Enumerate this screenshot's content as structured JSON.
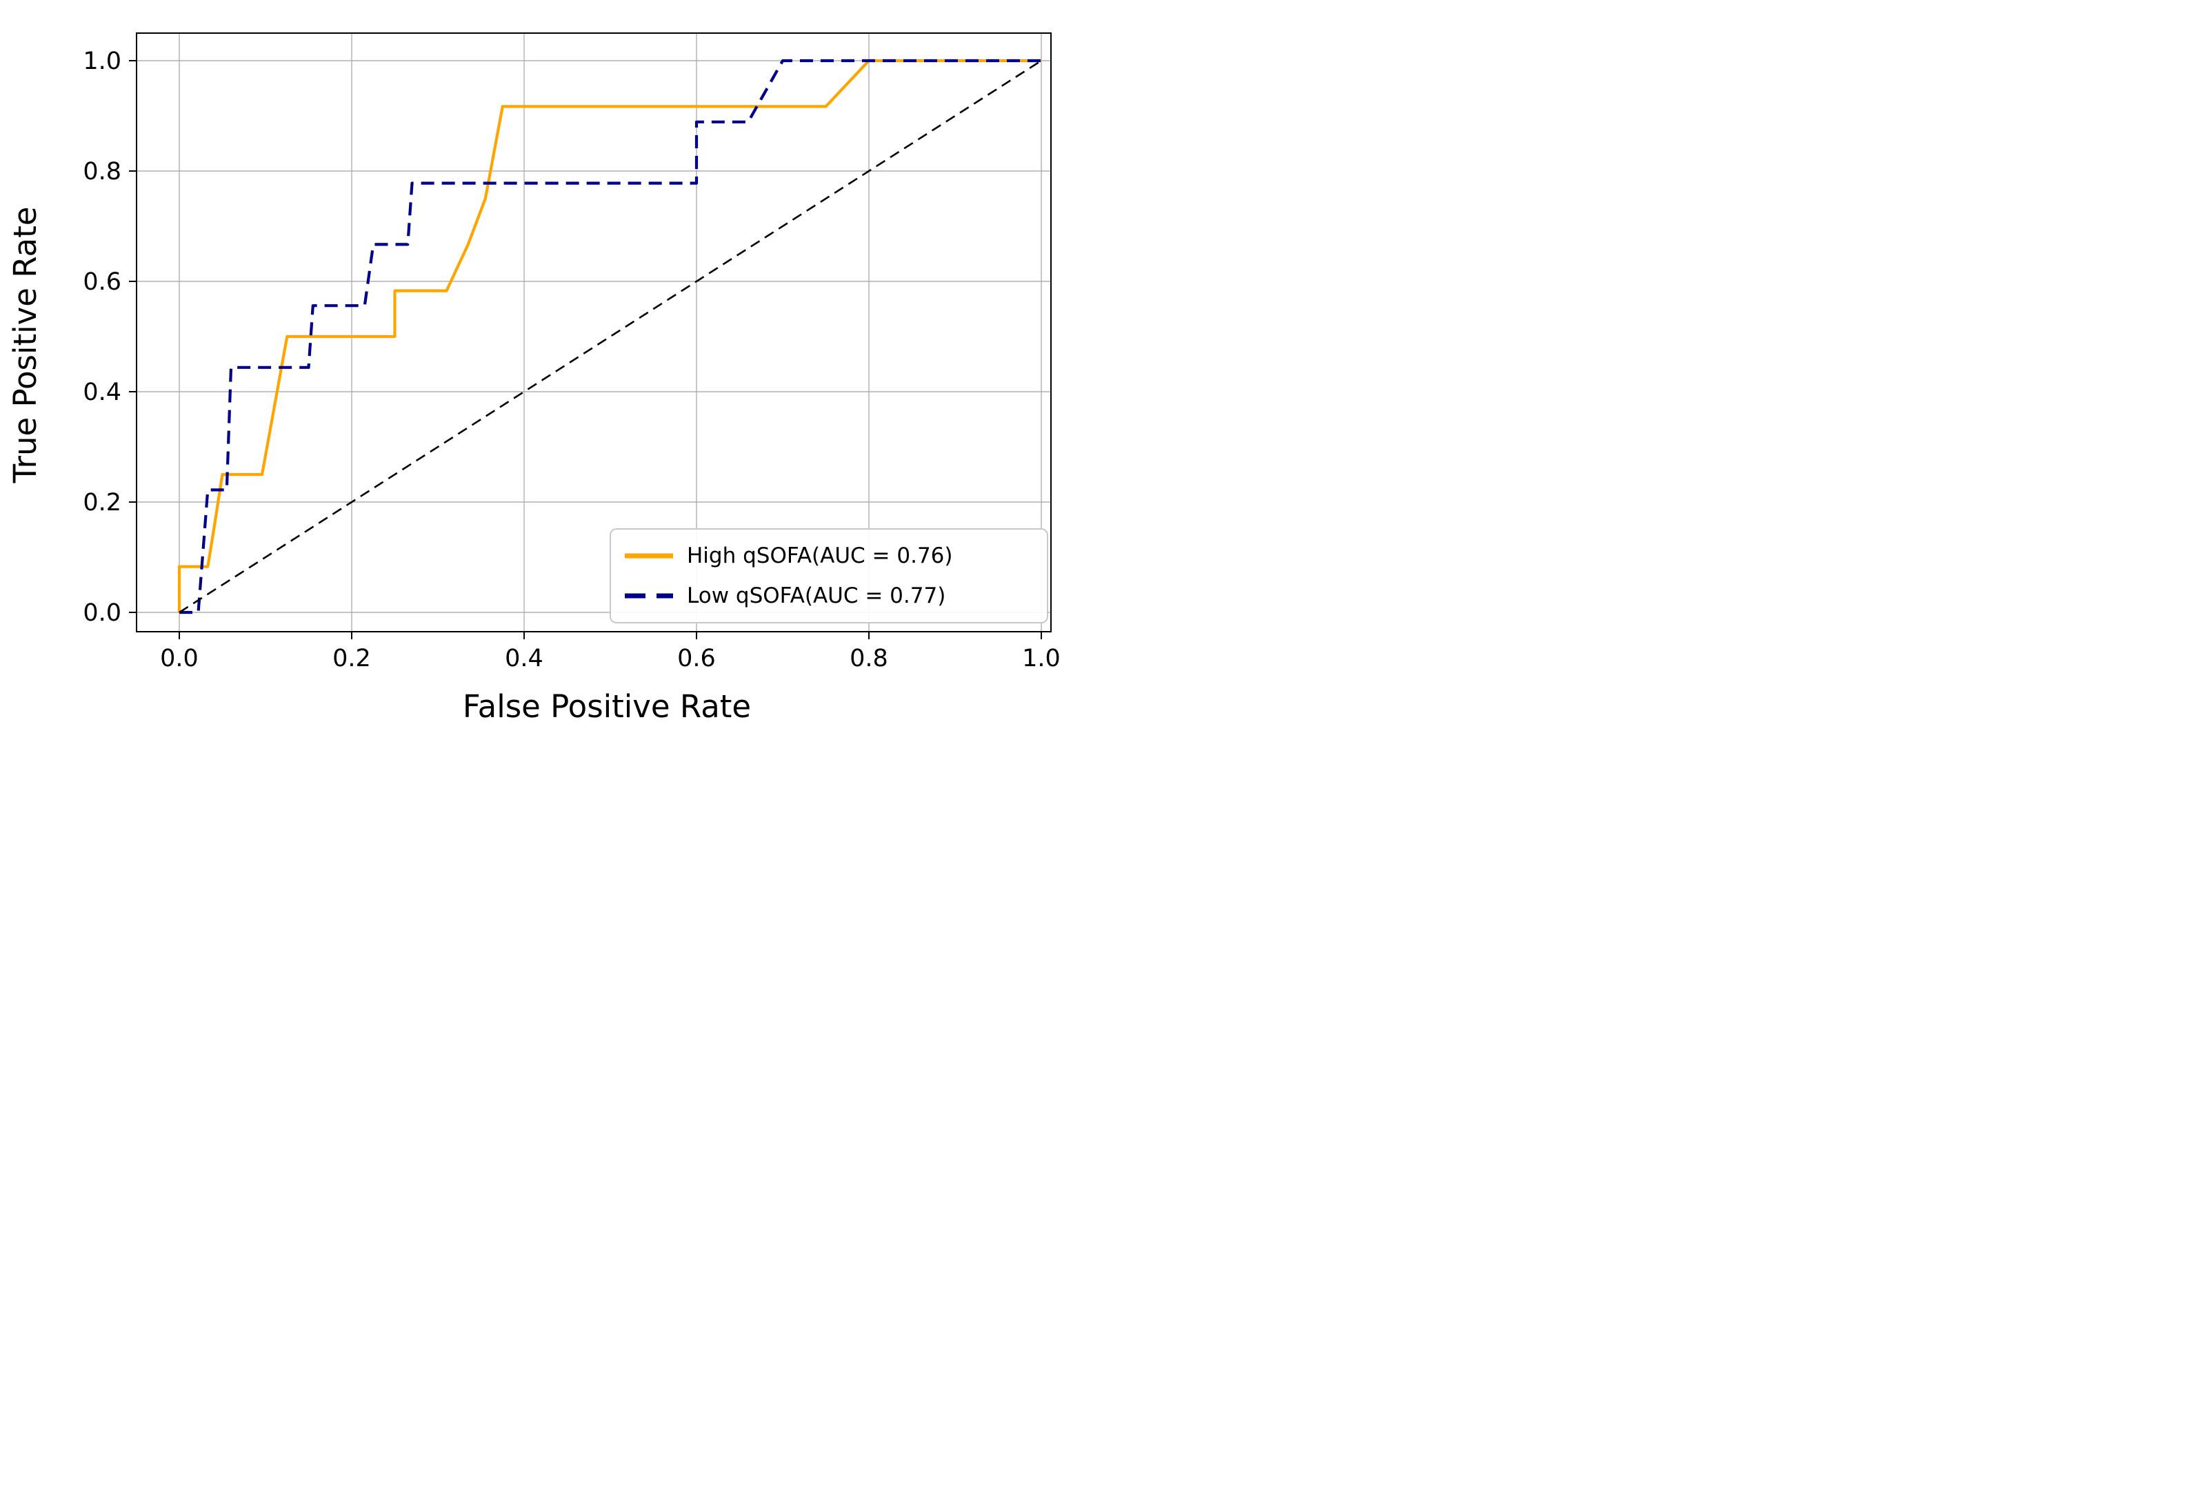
{
  "chart_data": {
    "type": "line",
    "subtype": "roc-step-curves",
    "title": "",
    "xlabel": "False Positive Rate",
    "ylabel": "True Positive Rate",
    "xlim": [
      0.0,
      1.0
    ],
    "ylim": [
      0.0,
      1.0
    ],
    "x_tick_labels": [
      "0.0",
      "0.2",
      "0.4",
      "0.6",
      "0.8",
      "1.0"
    ],
    "y_tick_labels": [
      "0.0",
      "0.2",
      "0.4",
      "0.6",
      "0.8",
      "1.0"
    ],
    "grid": true,
    "legend_position": "lower right",
    "colors": {
      "background": "#ffffff",
      "grid": "#b0b0b0",
      "axis": "#000000",
      "legend_border": "#c8c8c8",
      "high_qsofa": "#FFA500",
      "low_qsofa": "#00008B",
      "chance_line": "#000000"
    },
    "series": [
      {
        "name": "High qSOFA(AUC = 0.76)",
        "auc": 0.76,
        "color": "#FFA500",
        "line_style": "solid",
        "in_legend": true,
        "points": [
          [
            0,
            0
          ],
          [
            0,
            0.083
          ],
          [
            0.033,
            0.083
          ],
          [
            0.04,
            0.15
          ],
          [
            0.05,
            0.25
          ],
          [
            0.096,
            0.25
          ],
          [
            0.125,
            0.5
          ],
          [
            0.25,
            0.5
          ],
          [
            0.25,
            0.583
          ],
          [
            0.31,
            0.583
          ],
          [
            0.335,
            0.667
          ],
          [
            0.355,
            0.75
          ],
          [
            0.375,
            0.917
          ],
          [
            0.75,
            0.917
          ],
          [
            0.8,
            1.0
          ],
          [
            1.0,
            1.0
          ]
        ]
      },
      {
        "name": "Low qSOFA(AUC = 0.77)",
        "auc": 0.77,
        "color": "#00008B",
        "line_style": "dashed",
        "in_legend": true,
        "points": [
          [
            0,
            0
          ],
          [
            0.022,
            0
          ],
          [
            0.033,
            0.222
          ],
          [
            0.055,
            0.222
          ],
          [
            0.06,
            0.444
          ],
          [
            0.15,
            0.444
          ],
          [
            0.155,
            0.556
          ],
          [
            0.215,
            0.556
          ],
          [
            0.225,
            0.667
          ],
          [
            0.265,
            0.667
          ],
          [
            0.27,
            0.778
          ],
          [
            0.6,
            0.778
          ],
          [
            0.6,
            0.889
          ],
          [
            0.66,
            0.889
          ],
          [
            0.7,
            1.0
          ],
          [
            1.0,
            1.0
          ]
        ]
      },
      {
        "name": "chance-diagonal",
        "auc": 0.5,
        "color": "#000000",
        "line_style": "dashed",
        "in_legend": false,
        "points": [
          [
            0,
            0
          ],
          [
            1,
            1
          ]
        ]
      }
    ]
  }
}
